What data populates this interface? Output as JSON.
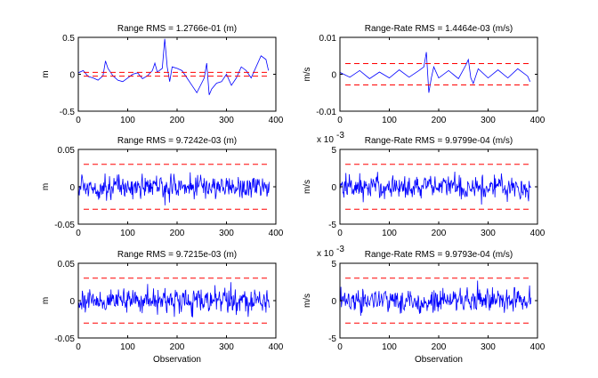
{
  "figure": {
    "background": "#ffffff",
    "axes_color": "#000000",
    "series_color": "#0000ff",
    "bound_color": "#ff0000"
  },
  "chart_data": [
    {
      "type": "line",
      "title": "Range RMS = 1.2766e-01 (m)",
      "xlabel": "",
      "ylabel": "m",
      "xlim": [
        0,
        400
      ],
      "ylim": [
        -0.5,
        0.5
      ],
      "xticks": [
        "0",
        "100",
        "200",
        "300",
        "400"
      ],
      "yticks": [
        "-0.5",
        "0",
        "0.5"
      ],
      "yexponent": "",
      "series": [
        {
          "x": [
            0,
            10,
            20,
            30,
            40,
            50,
            55,
            60,
            70,
            80,
            90,
            100,
            110,
            120,
            130,
            140,
            150,
            155,
            160,
            170,
            175,
            180,
            185,
            190,
            200,
            210,
            220,
            230,
            240,
            255,
            260,
            265,
            270,
            280,
            290,
            300,
            310,
            320,
            330,
            340,
            350,
            360,
            370,
            380,
            385
          ],
          "values": [
            0.02,
            0.05,
            -0.03,
            -0.05,
            -0.08,
            -0.02,
            0.18,
            0.08,
            -0.02,
            -0.08,
            -0.1,
            -0.05,
            0,
            0.02,
            -0.06,
            -0.02,
            0.05,
            0.15,
            0.03,
            0.08,
            0.48,
            0.1,
            -0.1,
            0.1,
            0.08,
            0.05,
            -0.05,
            -0.15,
            -0.25,
            -0.05,
            0.15,
            -0.28,
            -0.2,
            -0.12,
            -0.1,
            0,
            -0.15,
            -0.05,
            0.1,
            0.05,
            -0.05,
            0.1,
            0.25,
            0.2,
            0.05
          ]
        }
      ],
      "bounds": [
        0.026,
        -0.026
      ]
    },
    {
      "type": "line",
      "title": "Range-Rate RMS = 1.4464e-03 (m/s)",
      "xlabel": "",
      "ylabel": "m/s",
      "xlim": [
        0,
        400
      ],
      "ylim": [
        -0.01,
        0.01
      ],
      "xticks": [
        "0",
        "100",
        "200",
        "300",
        "400"
      ],
      "yticks": [
        "-0.01",
        "0",
        "0.01"
      ],
      "yexponent": "",
      "series": [
        {
          "x": [
            0,
            20,
            40,
            60,
            80,
            100,
            120,
            140,
            160,
            170,
            175,
            180,
            185,
            190,
            200,
            220,
            240,
            255,
            260,
            265,
            270,
            280,
            300,
            320,
            340,
            360,
            380,
            385
          ],
          "values": [
            0.0005,
            -0.0008,
            0.001,
            -0.0012,
            0.0006,
            -0.001,
            0.0012,
            -0.0008,
            0.001,
            0.002,
            0.006,
            -0.005,
            -0.001,
            0.002,
            -0.001,
            0.001,
            -0.0012,
            0.0025,
            0.004,
            -0.001,
            -0.0025,
            0.0015,
            -0.001,
            0.0012,
            -0.001,
            0.0015,
            -0.0005,
            -0.002
          ]
        }
      ],
      "bounds": [
        0.0029,
        -0.0029
      ]
    },
    {
      "type": "line",
      "title": "Range RMS = 9.7242e-03 (m)",
      "xlabel": "",
      "ylabel": "m",
      "xlim": [
        0,
        400
      ],
      "ylim": [
        -0.05,
        0.05
      ],
      "xticks": [
        "0",
        "100",
        "200",
        "300",
        "400"
      ],
      "yticks": [
        "-0.05",
        "0",
        "0.05"
      ],
      "yexponent": "",
      "series": [
        {
          "noise_rms": 0.0097,
          "x_start": 0,
          "x_end": 387,
          "points": 387
        }
      ],
      "bounds": [
        0.03,
        -0.03
      ]
    },
    {
      "type": "line",
      "title": "Range-Rate RMS = 9.9799e-04 (m/s)",
      "xlabel": "",
      "ylabel": "m/s",
      "xlim": [
        0,
        400
      ],
      "ylim": [
        -5,
        5
      ],
      "xticks": [
        "0",
        "100",
        "200",
        "300",
        "400"
      ],
      "yticks": [
        "-5",
        "0",
        "5"
      ],
      "yexponent": "x 10",
      "yexponent_power": "-3",
      "series": [
        {
          "noise_rms": 1.0,
          "x_start": 0,
          "x_end": 387,
          "points": 387
        }
      ],
      "bounds": [
        3,
        -3
      ]
    },
    {
      "type": "line",
      "title": "Range RMS = 9.7215e-03 (m)",
      "xlabel": "Observation",
      "ylabel": "m",
      "xlim": [
        0,
        400
      ],
      "ylim": [
        -0.05,
        0.05
      ],
      "xticks": [
        "0",
        "100",
        "200",
        "300",
        "400"
      ],
      "yticks": [
        "-0.05",
        "0",
        "0.05"
      ],
      "yexponent": "",
      "series": [
        {
          "noise_rms": 0.0097,
          "x_start": 0,
          "x_end": 387,
          "points": 387
        }
      ],
      "bounds": [
        0.03,
        -0.03
      ]
    },
    {
      "type": "line",
      "title": "Range-Rate RMS = 9.9793e-04 (m/s)",
      "xlabel": "Observation",
      "ylabel": "m/s",
      "xlim": [
        0,
        400
      ],
      "ylim": [
        -5,
        5
      ],
      "xticks": [
        "0",
        "100",
        "200",
        "300",
        "400"
      ],
      "yticks": [
        "-5",
        "0",
        "5"
      ],
      "yexponent": "x 10",
      "yexponent_power": "-3",
      "series": [
        {
          "noise_rms": 1.0,
          "x_start": 0,
          "x_end": 387,
          "points": 387
        }
      ],
      "bounds": [
        3,
        -3
      ]
    }
  ]
}
